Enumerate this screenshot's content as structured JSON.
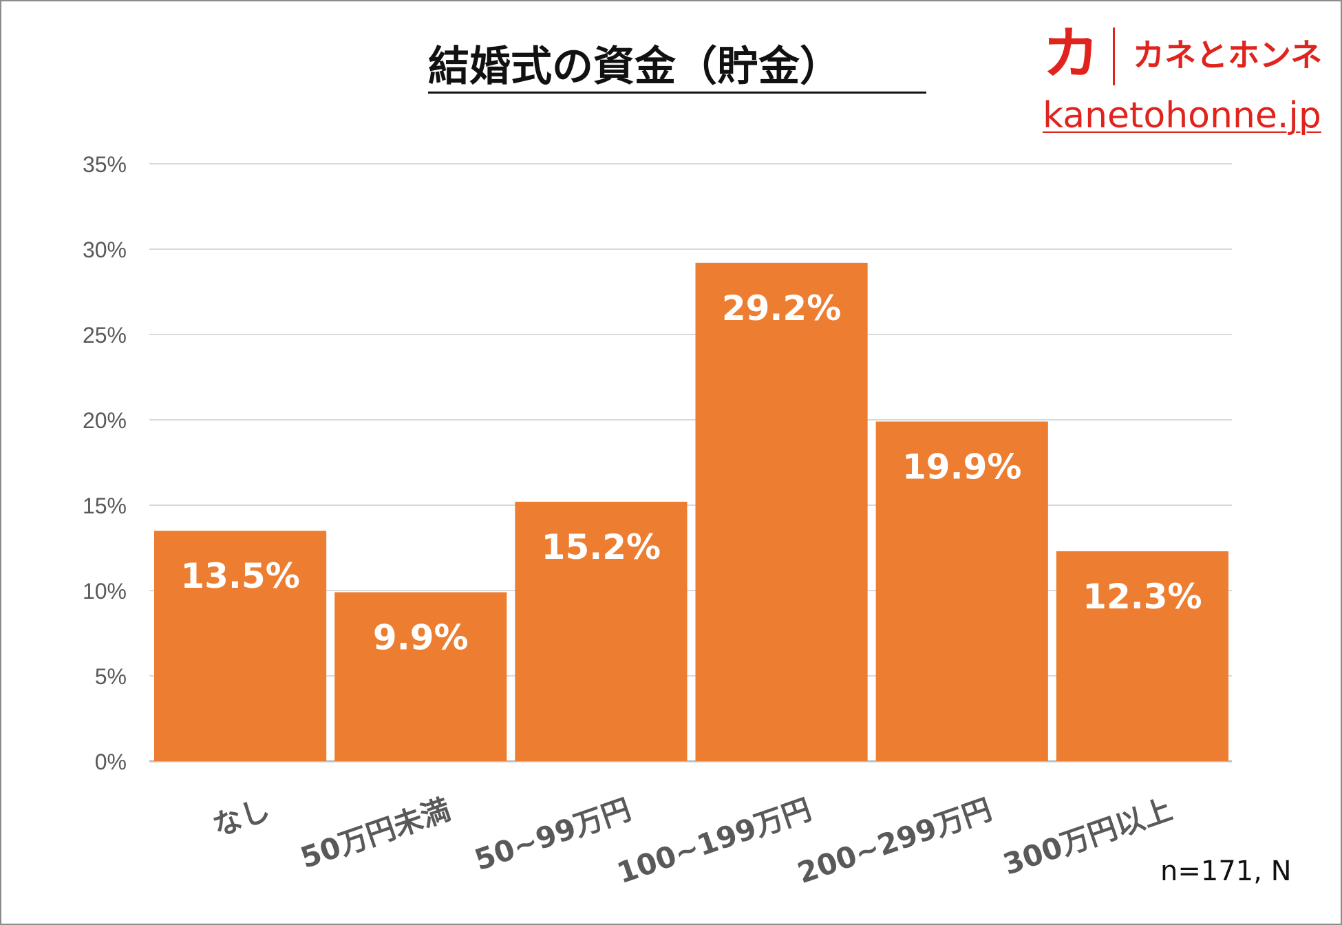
{
  "chart_data": {
    "type": "bar",
    "title": "結婚式の資金（貯金）",
    "categories": [
      "なし",
      "50万円未満",
      "50~99万円",
      "100~199万円",
      "200~299万円",
      "300万円以上"
    ],
    "values": [
      13.5,
      9.9,
      15.2,
      29.2,
      19.9,
      12.3
    ],
    "value_labels": [
      "13.5%",
      "9.9%",
      "15.2%",
      "29.2%",
      "19.9%",
      "12.3%"
    ],
    "ylim": [
      0,
      35
    ],
    "yticks": [
      "0%",
      "5%",
      "10%",
      "15%",
      "20%",
      "25%",
      "30%",
      "35%"
    ],
    "ytick_values": [
      0,
      5,
      10,
      15,
      20,
      25,
      30,
      35
    ],
    "grid": true,
    "bar_color": "#ed7d31",
    "data_label_color": "#ffffff",
    "tick_color": "#595959",
    "grid_color": "#d9d9d9"
  },
  "brand": {
    "mark": "カ",
    "name": "カネとホンネ",
    "url": "kanetohonne.jp",
    "color": "#e0241d"
  },
  "footnote": "n=171, N"
}
